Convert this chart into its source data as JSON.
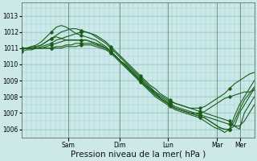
{
  "bg_color": "#cce8e8",
  "grid_color": "#99cccc",
  "line_color": "#1a5c1a",
  "xlabel": "Pression niveau de la mer( hPa )",
  "xlabel_fontsize": 7.5,
  "yticks": [
    1006,
    1007,
    1008,
    1009,
    1010,
    1011,
    1012,
    1013
  ],
  "ylim": [
    1005.5,
    1013.8
  ],
  "day_labels": [
    "Sam",
    "Dim",
    "Lun",
    "Mar",
    "Mer"
  ],
  "day_positions": [
    0.2,
    0.42,
    0.63,
    0.84,
    0.94
  ],
  "series": [
    [
      1011.0,
      1011.0,
      1011.1,
      1011.1,
      1011.2,
      1011.4,
      1011.6,
      1011.7,
      1011.6,
      1011.5,
      1011.5,
      1011.5,
      1011.5,
      1011.5,
      1011.4,
      1011.3,
      1011.1,
      1011.0,
      1010.8,
      1010.5,
      1010.2,
      1010.0,
      1009.7,
      1009.4,
      1009.1,
      1008.8,
      1008.5,
      1008.3,
      1008.1,
      1007.9,
      1007.7,
      1007.6,
      1007.5,
      1007.4,
      1007.3,
      1007.3,
      1007.3,
      1007.4,
      1007.6,
      1007.8,
      1008.0,
      1008.2,
      1008.5,
      1008.8,
      1009.0,
      1009.2,
      1009.4,
      1009.5
    ],
    [
      1011.0,
      1011.0,
      1011.1,
      1011.2,
      1011.4,
      1011.7,
      1012.0,
      1012.3,
      1012.4,
      1012.3,
      1012.1,
      1011.9,
      1011.8,
      1011.7,
      1011.6,
      1011.5,
      1011.3,
      1011.1,
      1010.8,
      1010.5,
      1010.2,
      1009.9,
      1009.6,
      1009.3,
      1009.0,
      1008.7,
      1008.4,
      1008.1,
      1007.9,
      1007.7,
      1007.5,
      1007.3,
      1007.2,
      1007.1,
      1007.0,
      1007.0,
      1007.0,
      1007.1,
      1007.3,
      1007.5,
      1007.7,
      1007.9,
      1008.0,
      1008.1,
      1008.2,
      1008.3,
      1008.3,
      1008.4
    ],
    [
      1011.0,
      1011.0,
      1011.0,
      1011.1,
      1011.2,
      1011.4,
      1011.6,
      1011.8,
      1012.0,
      1012.1,
      1012.2,
      1012.2,
      1012.1,
      1012.0,
      1011.9,
      1011.7,
      1011.5,
      1011.3,
      1011.0,
      1010.7,
      1010.4,
      1010.1,
      1009.8,
      1009.5,
      1009.2,
      1008.9,
      1008.6,
      1008.3,
      1008.0,
      1007.8,
      1007.6,
      1007.4,
      1007.3,
      1007.2,
      1007.1,
      1007.0,
      1006.9,
      1006.8,
      1006.7,
      1006.6,
      1006.5,
      1006.4,
      1006.3,
      1006.2,
      1006.2,
      1006.5,
      1007.0,
      1007.5
    ],
    [
      1011.0,
      1011.0,
      1011.0,
      1011.0,
      1011.1,
      1011.2,
      1011.3,
      1011.5,
      1011.6,
      1011.7,
      1011.8,
      1011.9,
      1012.0,
      1012.0,
      1011.9,
      1011.8,
      1011.6,
      1011.4,
      1011.1,
      1010.8,
      1010.5,
      1010.2,
      1009.9,
      1009.6,
      1009.3,
      1009.0,
      1008.7,
      1008.5,
      1008.2,
      1008.0,
      1007.8,
      1007.6,
      1007.5,
      1007.4,
      1007.3,
      1007.2,
      1007.1,
      1007.0,
      1006.9,
      1006.8,
      1006.7,
      1006.6,
      1006.5,
      1006.2,
      1006.0,
      1007.0,
      1007.5,
      1008.0
    ],
    [
      1011.0,
      1011.0,
      1011.0,
      1011.0,
      1011.0,
      1011.1,
      1011.2,
      1011.3,
      1011.4,
      1011.5,
      1011.5,
      1011.5,
      1011.5,
      1011.5,
      1011.4,
      1011.3,
      1011.2,
      1011.0,
      1010.8,
      1010.5,
      1010.2,
      1009.9,
      1009.6,
      1009.3,
      1009.0,
      1008.7,
      1008.4,
      1008.2,
      1007.9,
      1007.7,
      1007.5,
      1007.3,
      1007.2,
      1007.1,
      1007.0,
      1006.9,
      1006.8,
      1006.7,
      1006.5,
      1006.3,
      1006.1,
      1006.0,
      1006.0,
      1006.2,
      1007.0,
      1007.5,
      1008.0,
      1008.5
    ],
    [
      1011.0,
      1011.0,
      1011.0,
      1011.0,
      1011.0,
      1011.0,
      1011.0,
      1011.1,
      1011.1,
      1011.2,
      1011.2,
      1011.3,
      1011.3,
      1011.3,
      1011.3,
      1011.2,
      1011.1,
      1011.0,
      1010.8,
      1010.5,
      1010.2,
      1009.9,
      1009.6,
      1009.3,
      1009.0,
      1008.7,
      1008.5,
      1008.2,
      1007.9,
      1007.7,
      1007.5,
      1007.3,
      1007.2,
      1007.1,
      1007.0,
      1006.9,
      1006.8,
      1006.7,
      1006.5,
      1006.3,
      1006.1,
      1006.0,
      1006.0,
      1006.5,
      1007.2,
      1007.8,
      1008.2,
      1008.6
    ],
    [
      1010.8,
      1010.9,
      1010.9,
      1011.0,
      1011.0,
      1011.0,
      1011.0,
      1011.0,
      1011.0,
      1011.1,
      1011.1,
      1011.1,
      1011.2,
      1011.2,
      1011.2,
      1011.1,
      1011.0,
      1010.9,
      1010.7,
      1010.4,
      1010.1,
      1009.8,
      1009.5,
      1009.2,
      1008.9,
      1008.6,
      1008.3,
      1008.0,
      1007.8,
      1007.6,
      1007.4,
      1007.2,
      1007.1,
      1007.0,
      1006.9,
      1006.8,
      1006.7,
      1006.5,
      1006.3,
      1006.1,
      1006.0,
      1005.8,
      1006.0,
      1006.8,
      1007.5,
      1008.0,
      1008.5,
      1009.0
    ]
  ],
  "marker_interval": 6,
  "markersize": 1.8,
  "linewidth": 0.8
}
